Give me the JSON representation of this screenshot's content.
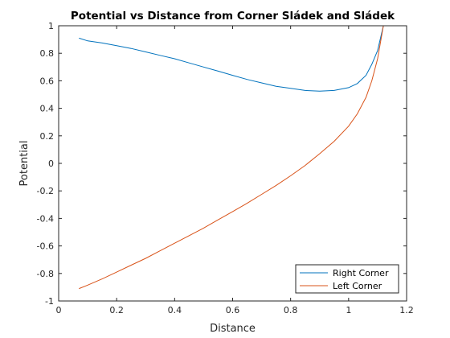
{
  "chart_data": {
    "type": "line",
    "title": "Potential vs Distance from Corner Sládek and Sládek",
    "xlabel": "Distance",
    "ylabel": "Potential",
    "xlim": [
      0,
      1.2
    ],
    "ylim": [
      -1,
      1
    ],
    "xticks": [
      0,
      0.2,
      0.4,
      0.6,
      0.8,
      1,
      1.2
    ],
    "yticks": [
      -1,
      -0.8,
      -0.6,
      -0.4,
      -0.2,
      0,
      0.2,
      0.4,
      0.6,
      0.8,
      1
    ],
    "xtick_labels": [
      "0",
      "0.2",
      "0.4",
      "0.6",
      "0.8",
      "1",
      "1.2"
    ],
    "ytick_labels": [
      "-1",
      "-0.8",
      "-0.6",
      "-0.4",
      "-0.2",
      "0",
      "0.2",
      "0.4",
      "0.6",
      "0.8",
      "1"
    ],
    "grid": false,
    "legend_position": "bottom-right",
    "series": [
      {
        "name": "Right Corner",
        "color": "#0072BD",
        "x": [
          0.07,
          0.1,
          0.15,
          0.2,
          0.25,
          0.3,
          0.35,
          0.4,
          0.45,
          0.5,
          0.55,
          0.6,
          0.65,
          0.7,
          0.75,
          0.8,
          0.85,
          0.9,
          0.95,
          1.0,
          1.03,
          1.06,
          1.08,
          1.1,
          1.11,
          1.12
        ],
        "y": [
          0.91,
          0.89,
          0.875,
          0.855,
          0.835,
          0.81,
          0.785,
          0.76,
          0.73,
          0.7,
          0.67,
          0.64,
          0.61,
          0.585,
          0.56,
          0.545,
          0.53,
          0.525,
          0.53,
          0.55,
          0.58,
          0.64,
          0.72,
          0.82,
          0.91,
          1.0
        ]
      },
      {
        "name": "Left Corner",
        "color": "#D95319",
        "x": [
          0.07,
          0.1,
          0.15,
          0.2,
          0.25,
          0.3,
          0.35,
          0.4,
          0.45,
          0.5,
          0.55,
          0.6,
          0.65,
          0.7,
          0.75,
          0.8,
          0.85,
          0.9,
          0.95,
          1.0,
          1.03,
          1.06,
          1.08,
          1.1,
          1.11,
          1.12
        ],
        "y": [
          -0.91,
          -0.885,
          -0.84,
          -0.79,
          -0.74,
          -0.69,
          -0.635,
          -0.58,
          -0.525,
          -0.47,
          -0.41,
          -0.35,
          -0.29,
          -0.225,
          -0.16,
          -0.09,
          -0.015,
          0.07,
          0.16,
          0.27,
          0.36,
          0.48,
          0.6,
          0.76,
          0.88,
          1.0
        ]
      }
    ]
  }
}
